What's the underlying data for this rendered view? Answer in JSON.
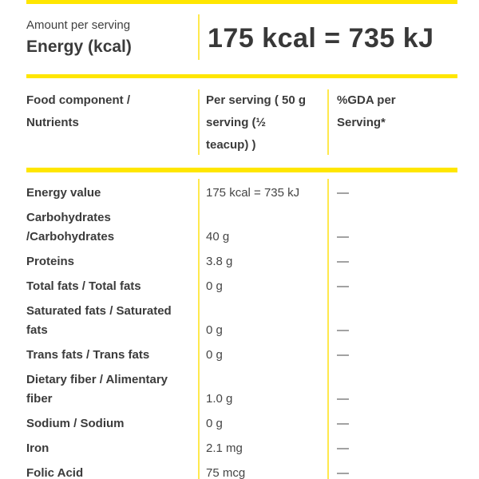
{
  "colors": {
    "accent_yellow": "#ffe600",
    "divider_yellow_light": "#ffe94d",
    "text_dark": "#3b3b3b",
    "text_value": "#454545"
  },
  "energy_summary": {
    "subtitle": "Amount per serving",
    "title": "Energy (kcal)",
    "value": "175 kcal = 735 kJ"
  },
  "table": {
    "columns": {
      "nutrients": "Food component /\nNutrients",
      "per_serving": "Per serving ( 50 g\nserving (½\nteacup) )",
      "gda": "%GDA per\nServing*"
    },
    "rows": [
      {
        "nutrient": "Energy value",
        "per_serving": "175 kcal = 735 kJ",
        "gda": "—"
      },
      {
        "nutrient": "Carbohydrates\n/Carbohydrates",
        "per_serving": "40 g",
        "gda": "—"
      },
      {
        "nutrient": "Proteins",
        "per_serving": "3.8 g",
        "gda": "—"
      },
      {
        "nutrient": "Total fats / Total fats",
        "per_serving": "0 g",
        "gda": "—"
      },
      {
        "nutrient": "Saturated fats / Saturated\nfats",
        "per_serving": "0 g",
        "gda": "—"
      },
      {
        "nutrient": "Trans fats / Trans fats",
        "per_serving": "0 g",
        "gda": "—"
      },
      {
        "nutrient": "Dietary fiber / Alimentary\nfiber",
        "per_serving": "1.0 g",
        "gda": "—"
      },
      {
        "nutrient": "Sodium / Sodium",
        "per_serving": "0 g",
        "gda": "—"
      },
      {
        "nutrient": "Iron",
        "per_serving": "2.1 mg",
        "gda": "—"
      },
      {
        "nutrient": "Folic Acid",
        "per_serving": "75 mcg",
        "gda": "—"
      }
    ]
  }
}
